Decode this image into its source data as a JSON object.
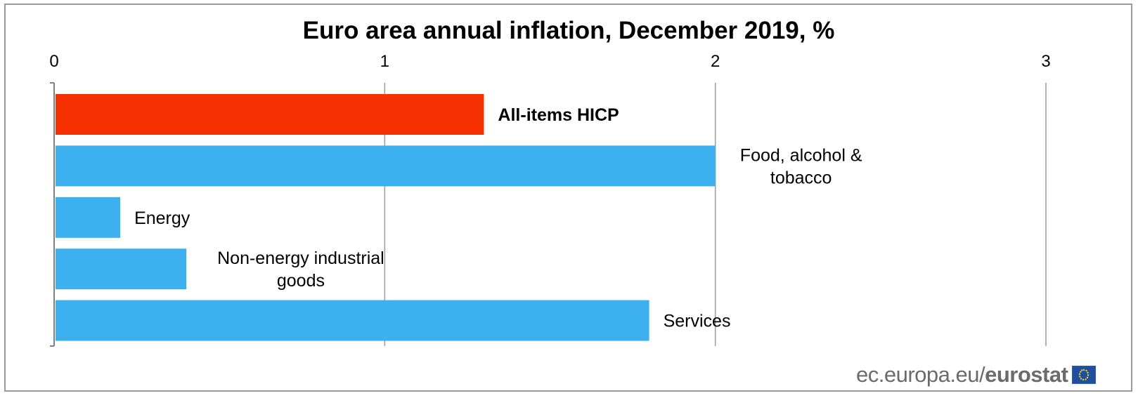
{
  "chart_data": {
    "type": "bar",
    "orientation": "horizontal",
    "title": "Euro area annual inflation, December 2019, %",
    "xlim": [
      0,
      3
    ],
    "x_ticks": [
      "0",
      "1",
      "2",
      "3"
    ],
    "x_axis_position": "top",
    "grid": "vertical",
    "bars": [
      {
        "label_lines": [
          "All-items HICP"
        ],
        "value": 1.3,
        "color": "#f52f00",
        "bold": true
      },
      {
        "label_lines": [
          "Food, alcohol &",
          "tobacco"
        ],
        "value": 2.0,
        "color": "#3db0ef",
        "bold": false
      },
      {
        "label_lines": [
          "Energy"
        ],
        "value": 0.2,
        "color": "#3db0ef",
        "bold": false
      },
      {
        "label_lines": [
          "Non-energy industrial",
          "goods"
        ],
        "value": 0.4,
        "color": "#3db0ef",
        "bold": false
      },
      {
        "label_lines": [
          "Services"
        ],
        "value": 1.8,
        "color": "#3db0ef",
        "bold": false
      }
    ]
  },
  "credit": {
    "site": "ec.europa.eu/",
    "brand": "eurostat",
    "logo_icon": "eu-flag-icon"
  }
}
